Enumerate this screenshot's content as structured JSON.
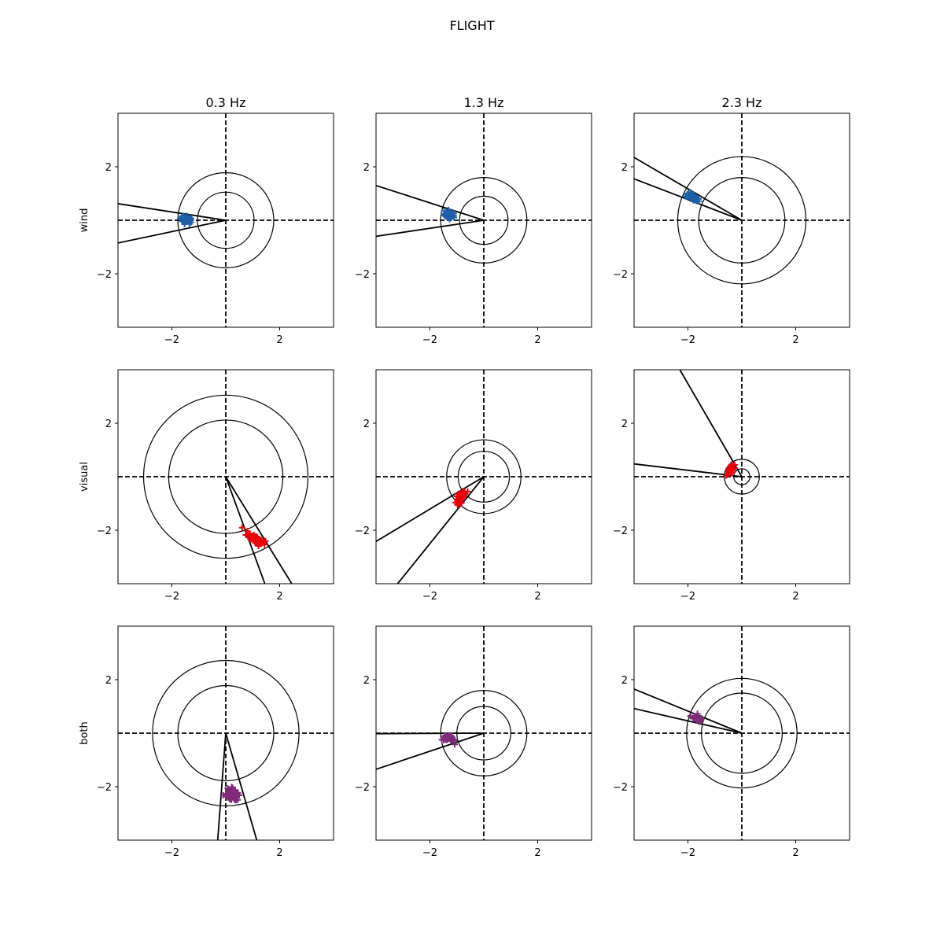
{
  "figure": {
    "title": "FLIGHT",
    "columns": [
      "0.3 Hz",
      "1.3 Hz",
      "2.3 Hz"
    ],
    "rows": [
      "wind",
      "visual",
      "both"
    ],
    "row_colors": [
      "#1f5fa6",
      "#e8000b",
      "#7f2b7a"
    ]
  },
  "chart_data": {
    "type": "scatter",
    "title": "FLIGHT",
    "marker": "plus",
    "xlim": [
      -4,
      4
    ],
    "ylim": [
      -4,
      4
    ],
    "xticks": [
      -2,
      2
    ],
    "yticks": [
      -2,
      2
    ],
    "tick_labels": [
      "−2",
      "2"
    ],
    "guide_lines": "dashed at x=0 and y=0",
    "panels": [
      {
        "row": "wind",
        "col": "0.3 Hz",
        "color": "#1f5fa6",
        "cluster": {
          "cx": -1.45,
          "cy": 0.02,
          "sx": 0.12,
          "sy": 0.07,
          "angle_deg": -15,
          "n": 40
        },
        "circles": [
          1.05,
          1.78
        ],
        "wedge": [
          [
            -4.0,
            0.62
          ],
          [
            -4.0,
            -0.85
          ]
        ]
      },
      {
        "row": "wind",
        "col": "1.3 Hz",
        "color": "#1f5fa6",
        "cluster": {
          "cx": -1.3,
          "cy": 0.2,
          "sx": 0.1,
          "sy": 0.07,
          "angle_deg": -15,
          "n": 40
        },
        "circles": [
          0.9,
          1.6
        ],
        "wedge": [
          [
            -4.0,
            1.3
          ],
          [
            -4.0,
            -0.6
          ]
        ]
      },
      {
        "row": "wind",
        "col": "2.3 Hz",
        "color": "#1f5fa6",
        "cluster": {
          "cx": -1.82,
          "cy": 0.85,
          "sx": 0.14,
          "sy": 0.06,
          "angle_deg": -28,
          "n": 40
        },
        "circles": [
          1.6,
          2.38
        ],
        "wedge": [
          [
            -4.0,
            2.35
          ],
          [
            -4.0,
            1.55
          ]
        ]
      },
      {
        "row": "visual",
        "col": "0.3 Hz",
        "color": "#e8000b",
        "cluster": {
          "cx": 1.15,
          "cy": -2.35,
          "sx": 0.2,
          "sy": 0.08,
          "angle_deg": -32,
          "n": 60
        },
        "circles": [
          2.12,
          3.05
        ],
        "wedge": [
          [
            1.45,
            -4.0
          ],
          [
            2.45,
            -4.0
          ]
        ]
      },
      {
        "row": "visual",
        "col": "1.3 Hz",
        "color": "#e8000b",
        "cluster": {
          "cx": -0.88,
          "cy": -0.8,
          "sx": 0.13,
          "sy": 0.06,
          "angle_deg": 60,
          "n": 40
        },
        "circles": [
          0.95,
          1.38
        ],
        "wedge": [
          [
            -4.0,
            -2.42
          ],
          [
            -3.2,
            -4.0
          ]
        ]
      },
      {
        "row": "visual",
        "col": "2.3 Hz",
        "color": "#e8000b",
        "cluster": {
          "cx": -0.42,
          "cy": 0.25,
          "sx": 0.09,
          "sy": 0.05,
          "angle_deg": 55,
          "n": 30
        },
        "circles": [
          0.3,
          0.65
        ],
        "wedge": [
          [
            -4.0,
            0.48
          ],
          [
            -2.3,
            4.0
          ]
        ]
      },
      {
        "row": "both",
        "col": "0.3 Hz",
        "color": "#7f2b7a",
        "cluster": {
          "cx": 0.25,
          "cy": -2.3,
          "sx": 0.15,
          "sy": 0.09,
          "angle_deg": -60,
          "n": 60
        },
        "circles": [
          1.78,
          2.72
        ],
        "wedge": [
          [
            -0.3,
            -4.0
          ],
          [
            1.15,
            -4.0
          ]
        ]
      },
      {
        "row": "both",
        "col": "1.3 Hz",
        "color": "#7f2b7a",
        "cluster": {
          "cx": -1.3,
          "cy": -0.2,
          "sx": 0.12,
          "sy": 0.06,
          "angle_deg": -15,
          "n": 40
        },
        "circles": [
          1.0,
          1.6
        ],
        "wedge": [
          [
            -4.0,
            -0.02
          ],
          [
            -4.0,
            -1.35
          ]
        ]
      },
      {
        "row": "both",
        "col": "2.3 Hz",
        "color": "#7f2b7a",
        "cluster": {
          "cx": -1.65,
          "cy": 0.55,
          "sx": 0.13,
          "sy": 0.05,
          "angle_deg": -20,
          "n": 30
        },
        "circles": [
          1.5,
          2.05
        ],
        "wedge": [
          [
            -4.0,
            1.65
          ],
          [
            -4.0,
            0.92
          ]
        ]
      }
    ]
  }
}
